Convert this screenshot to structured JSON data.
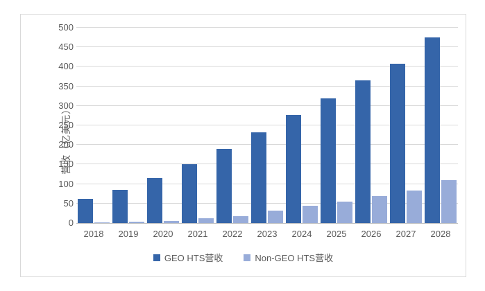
{
  "colors": {
    "geo_series": "#3565a9",
    "nongeo_series": "#98acd9",
    "gridline": "#d9d9d9",
    "axis_line": "#c3c3c3",
    "text": "#595959",
    "frame_border": "#d9d9d9",
    "background": "#ffffff"
  },
  "chart_data": {
    "type": "bar",
    "title": "",
    "xlabel": "",
    "ylabel": "营收（亿美元）",
    "categories": [
      "2018",
      "2019",
      "2020",
      "2021",
      "2022",
      "2023",
      "2024",
      "2025",
      "2026",
      "2027",
      "2028"
    ],
    "series": [
      {
        "name": "GEO HTS营收",
        "color": "#3565a9",
        "values": [
          62,
          85,
          115,
          150,
          189,
          232,
          277,
          320,
          365,
          408,
          476
        ]
      },
      {
        "name": "Non-GEO HTS营收",
        "color": "#98acd9",
        "values": [
          2,
          3,
          6,
          12,
          18,
          32,
          44,
          55,
          69,
          84,
          110
        ]
      }
    ],
    "ylim": [
      0,
      500
    ],
    "yticks": [
      0,
      50,
      100,
      150,
      200,
      250,
      300,
      350,
      400,
      450,
      500
    ],
    "grid": true,
    "legend_position": "bottom"
  }
}
